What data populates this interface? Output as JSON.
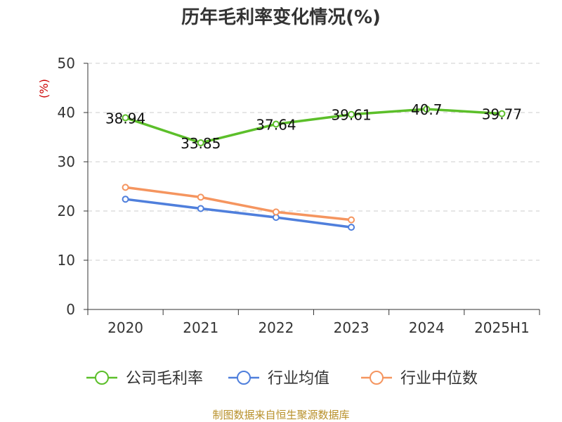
{
  "chart_data": {
    "type": "line",
    "title": "历年毛利率变化情况(%)",
    "ylabel": "(%)",
    "xlabel": "",
    "categories": [
      "2020",
      "2021",
      "2022",
      "2023",
      "2024",
      "2025H1"
    ],
    "ylim": [
      0,
      50
    ],
    "yticks": [
      0,
      10,
      20,
      30,
      40,
      50
    ],
    "grid": "horizontal dashed",
    "legend_position": "bottom",
    "series": [
      {
        "name": "公司毛利率",
        "color": "#5cbf2a",
        "values": [
          38.94,
          33.85,
          37.64,
          39.61,
          40.7,
          39.77
        ],
        "labels": [
          "38.94",
          "33.85",
          "37.64",
          "39.61",
          "40.7",
          "39.77"
        ],
        "show_labels": true
      },
      {
        "name": "行业均值",
        "color": "#4f7fdc",
        "values": [
          22.4,
          20.5,
          18.7,
          16.7,
          null,
          null
        ],
        "show_labels": false
      },
      {
        "name": "行业中位数",
        "color": "#f5955f",
        "values": [
          24.8,
          22.8,
          19.8,
          18.2,
          null,
          null
        ],
        "show_labels": false
      }
    ]
  },
  "source_note": "制图数据来自恒生聚源数据库",
  "colors": {
    "axis": "#333333",
    "grid": "#cccccc",
    "ylabel": "#cc0000",
    "text": "#333333"
  }
}
